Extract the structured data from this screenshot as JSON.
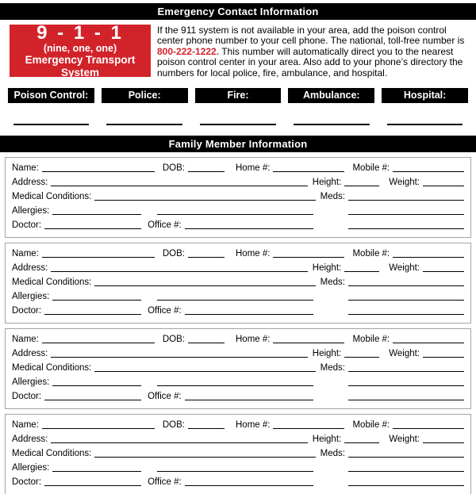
{
  "page": {
    "header_emergency": "Emergency Contact Information",
    "header_family": "Family Member Information"
  },
  "emergency": {
    "nine11": {
      "number": "9 - 1 - 1",
      "words": "(nine, one, one)",
      "system": "Emergency Transport System"
    },
    "paragraph": {
      "part1": "If the 911 system is not available in your area, add the poison control center phone number to your cell phone. The national, toll-free number is ",
      "phone": "800-222-1222.",
      "part2": " This number will automatically direct you to the nearest poison control center in your area. Also add to your phone’s directory the numbers for local police, fire, ambulance, and hospital."
    },
    "contacts": [
      {
        "label": "Poison Control:"
      },
      {
        "label": "Police:"
      },
      {
        "label": "Fire:"
      },
      {
        "label": "Ambulance:"
      },
      {
        "label": "Hospital:"
      }
    ]
  },
  "family": {
    "member_count": 4,
    "labels": {
      "name": "Name:",
      "dob": "DOB:",
      "home": "Home #:",
      "mobile": "Mobile #:",
      "address": "Address:",
      "height": "Height:",
      "weight": "Weight:",
      "medical": "Medical Conditions:",
      "meds": "Meds:",
      "allergies": "Allergies:",
      "doctor": "Doctor:",
      "office": "Office #:"
    }
  },
  "colors": {
    "accent_red": "#d2232a",
    "bar_black": "#000000",
    "block_border": "#a3a3a3"
  }
}
